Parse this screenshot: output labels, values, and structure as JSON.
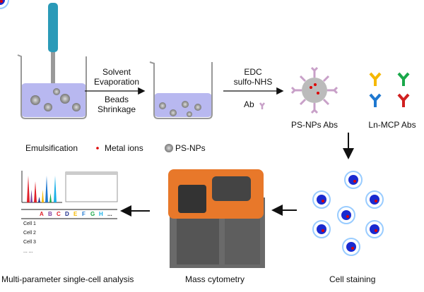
{
  "step1": {
    "top": "Solvent",
    "top2": "Evaporation",
    "bottom": "Beads",
    "bottom2": "Shrinkage"
  },
  "step2": {
    "top": "EDC",
    "top2": "sulfo-NHS",
    "ab": "Ab"
  },
  "labels": {
    "psnp_abs": "PS-NPs Abs",
    "ln_mcp_abs": "Ln-MCP Abs",
    "emulsification": "Emulsification",
    "metal_ions": "Metal ions",
    "ps_nps": "PS-NPs",
    "analysis": "Multi-parameter single-cell analysis",
    "mass_cytometry": "Mass cytometry",
    "cell_staining": "Cell staining"
  },
  "table": {
    "columns": [
      "A",
      "B",
      "C",
      "D",
      "E",
      "F",
      "G",
      "H",
      "..."
    ],
    "rows": [
      "Cell 1",
      "Cell 2",
      "Cell 3",
      "... ..."
    ]
  },
  "colors": {
    "A": "#e0202a",
    "B": "#7b3fa0",
    "C": "#e0202a",
    "D": "#1a2a8a",
    "E": "#f5b800",
    "F": "#1e78d0",
    "G": "#1aa84a",
    "H": "#1ab0e8",
    "liquid": "#b8b8f0",
    "ab": "#c8a0c8",
    "cytometer": "#e8782a"
  }
}
